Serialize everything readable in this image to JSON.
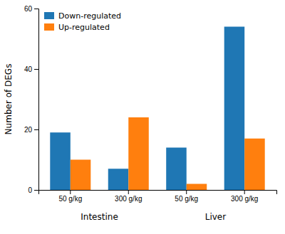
{
  "chart_data": {
    "type": "bar",
    "categories": [
      "50 g/kg",
      "300 g/kg",
      "50 g/kg",
      "300 g/kg"
    ],
    "series": [
      {
        "name": "Down-regulated",
        "values": [
          19,
          7,
          14,
          54
        ]
      },
      {
        "name": "Up-regulated",
        "values": [
          10,
          24,
          2,
          17
        ]
      }
    ],
    "annotations": [
      "Intestine",
      "Liver"
    ],
    "y_label": "Number of DEGs",
    "ylim": [
      0,
      60
    ],
    "yticks": [
      0,
      20,
      40,
      60
    ],
    "grid": false,
    "legend": "upper left"
  }
}
